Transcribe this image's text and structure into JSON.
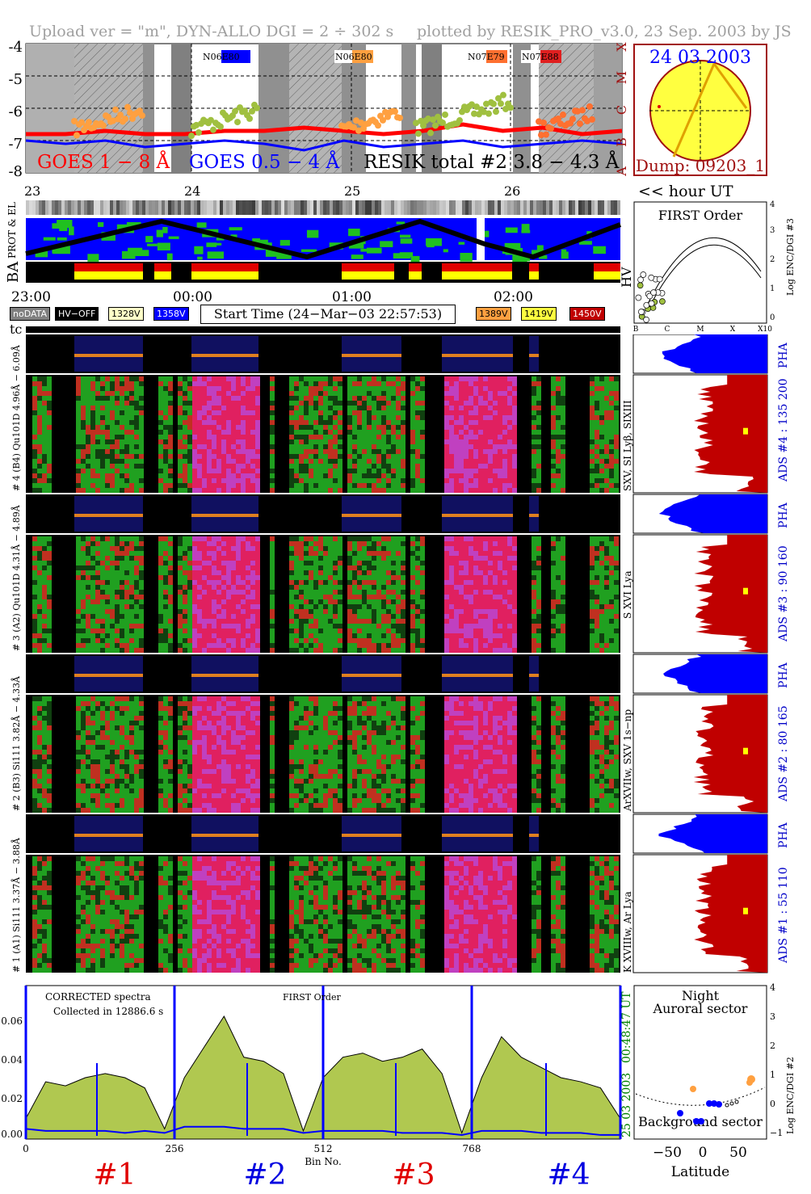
{
  "header": {
    "upload": "Upload ver = \"m\", DYN-ALLO DGI =  2 ÷ 302 s",
    "plotted": "plotted by RESIK_PRO_v3.0, 23 Sep. 2003 by JS"
  },
  "goes": {
    "yticks": [
      "-4",
      "-5",
      "-6",
      "-7",
      "-8"
    ],
    "class_labels": [
      "X",
      "M",
      "C",
      "B",
      "A"
    ],
    "flare_tags": [
      {
        "text": "N06E80",
        "colors": [
          "#ffffff",
          "#0000ff"
        ],
        "pos": 0.33
      },
      {
        "text": "N06E80",
        "colors": [
          "#ffffff",
          "#ffa040"
        ],
        "pos": 0.545
      },
      {
        "text": "N07E79",
        "colors": [
          "#ffffff",
          "#ff7030"
        ],
        "pos": 0.765
      },
      {
        "text": "N07E88",
        "colors": [
          "#ffffff",
          "#e02020"
        ],
        "pos": 0.85
      }
    ],
    "legend_goes18": "GOES 1 − 8 Å",
    "legend_goes054": "GOES 0.5 − 4 Å",
    "legend_resik": "RESIK total #2  3.8 − 4.3 Å",
    "colors": {
      "goes18": "#ff0000",
      "goes054": "#0000ff",
      "resik": "#000000"
    }
  },
  "sun": {
    "date": "24 03 2003",
    "dump": "Dump: 09203_1",
    "disk_color": "#ffff40",
    "date_color": "#0000ff",
    "dump_color": "#a01010"
  },
  "orbit": {
    "day_labels": [
      "23",
      "24",
      "25",
      "26"
    ],
    "hour_label": "<< hour UT",
    "prot_label": "PROT & EL",
    "ba_label": "BA",
    "hv_label": "HV"
  },
  "time_axis": {
    "ticks": [
      "23:00",
      "00:00",
      "01:00",
      "02:00"
    ],
    "start_time": "Start Time (24−Mar−03 22:57:53)"
  },
  "legend_boxes": [
    {
      "text": "noDATA",
      "bg": "#808080",
      "fg": "#ffffff"
    },
    {
      "text": "HV−OFF",
      "bg": "#000000",
      "fg": "#ffffff"
    },
    {
      "text": "1328V",
      "bg": "#ffffc8",
      "fg": "#000000"
    },
    {
      "text": "1358V",
      "bg": "#0000ff",
      "fg": "#ffffff"
    },
    {
      "text": "1389V",
      "bg": "#ffa040",
      "fg": "#000000"
    },
    {
      "text": "1419V",
      "bg": "#ffff40",
      "fg": "#000000"
    },
    {
      "text": "1450V",
      "bg": "#c00000",
      "fg": "#ffffff"
    }
  ],
  "tc_label": "tc",
  "first_order": {
    "title": "FIRST Order",
    "ylabel": "Log ENC/DGI #3",
    "yticks": [
      "4",
      "3",
      "2",
      "1",
      "0"
    ],
    "xticks": [
      "B",
      "C",
      "M",
      "X",
      "X10"
    ]
  },
  "channels": [
    {
      "left": "# 4 (B4) Qu101D 4.96Å − 6.09Å",
      "right": "SXV, SI Lyβ, SIXIII",
      "ads": "ADS #4 :  135 200"
    },
    {
      "left": "# 3 (A2) Qu101D 4.31Å − 4.89Å",
      "right": "S XVI Lya",
      "ads": "ADS #3 :   90 160"
    },
    {
      "left": "# 2 (B3) Si111 3.82Å − 4.33Å",
      "right": "ArXVIIw, SXV 1s−np",
      "ads": "ADS #2 :   80 165"
    },
    {
      "left": "# 1 (A1) Si111 3.37Å − 3.88Å",
      "right": "K XVIIIw, Ar Lya",
      "ads": "ADS #1 :   55 110"
    }
  ],
  "pha_label": "PHA",
  "spectrum": {
    "title1": "CORRECTED spectra",
    "title2": "Collected in 12886.6 s",
    "title3": "FIRST Order",
    "yticks": [
      "0.06",
      "0.04",
      "0.02",
      "0.00"
    ],
    "xticks": [
      "0",
      "256",
      "512",
      "768"
    ],
    "xlabel": "Bin No.",
    "time": "00:48:47 UT",
    "date": "25 03 2003",
    "channels": [
      {
        "text": "#1",
        "color": "#e00000"
      },
      {
        "text": "#2",
        "color": "#0000e0"
      },
      {
        "text": "#3",
        "color": "#e00000"
      },
      {
        "text": "#4",
        "color": "#0000e0"
      }
    ]
  },
  "latitude": {
    "night": "Night",
    "auroral": "Auroral sector",
    "background": "Background sector",
    "xlabel": "Latitude",
    "xticks": [
      "−50",
      "0",
      "50"
    ],
    "yticks": [
      "4",
      "3",
      "2",
      "1",
      "0",
      "−1"
    ],
    "ylabel": "Log ENC/DGI #2"
  },
  "chart_data": [
    {
      "type": "line",
      "title": "",
      "ylabel": "",
      "ylim": [
        -8,
        -4
      ],
      "series": [
        {
          "name": "GOES 1 − 8 Å",
          "values": [
            -6.8,
            -6.8,
            -6.7,
            -6.8,
            -6.8,
            -6.7,
            -6.7,
            -6.6,
            -6.7,
            -6.8,
            -6.7,
            -6.5,
            -6.7,
            -6.6,
            -6.8,
            -6.7
          ]
        },
        {
          "name": "GOES 0.5 − 4 Å",
          "values": [
            -7.0,
            -7.1,
            -7.0,
            -7.2,
            -7.1,
            -7.0,
            -7.1,
            -7.3,
            -7.0,
            -7.2,
            -7.1,
            -7.0,
            -7.2,
            -7.1,
            -7.0,
            -7.1
          ]
        }
      ]
    },
    {
      "type": "area",
      "title": "",
      "xlabel": "Bin No.",
      "xlim": [
        0,
        1024
      ],
      "ylim": [
        0,
        0.075
      ],
      "series": [
        {
          "name": "",
          "values": [
            0.01,
            0.028,
            0.026,
            0.03,
            0.032,
            0.03,
            0.025,
            0.005,
            0.03,
            0.045,
            0.06,
            0.04,
            0.038,
            0.032,
            0.004,
            0.03,
            0.04,
            0.042,
            0.038,
            0.04,
            0.044,
            0.032,
            0.003,
            0.03,
            0.05,
            0.04,
            0.035,
            0.03,
            0.028,
            0.025,
            0.01
          ]
        },
        {
          "name": "",
          "values": [
            0.005,
            0.004,
            0.004,
            0.004,
            0.004,
            0.003,
            0.004,
            0.003,
            0.006,
            0.006,
            0.006,
            0.005,
            0.005,
            0.005,
            0.003,
            0.004,
            0.004,
            0.004,
            0.004,
            0.003,
            0.003,
            0.003,
            0.002,
            0.004,
            0.004,
            0.004,
            0.003,
            0.003,
            0.003,
            0.002,
            0.002
          ]
        }
      ]
    }
  ]
}
